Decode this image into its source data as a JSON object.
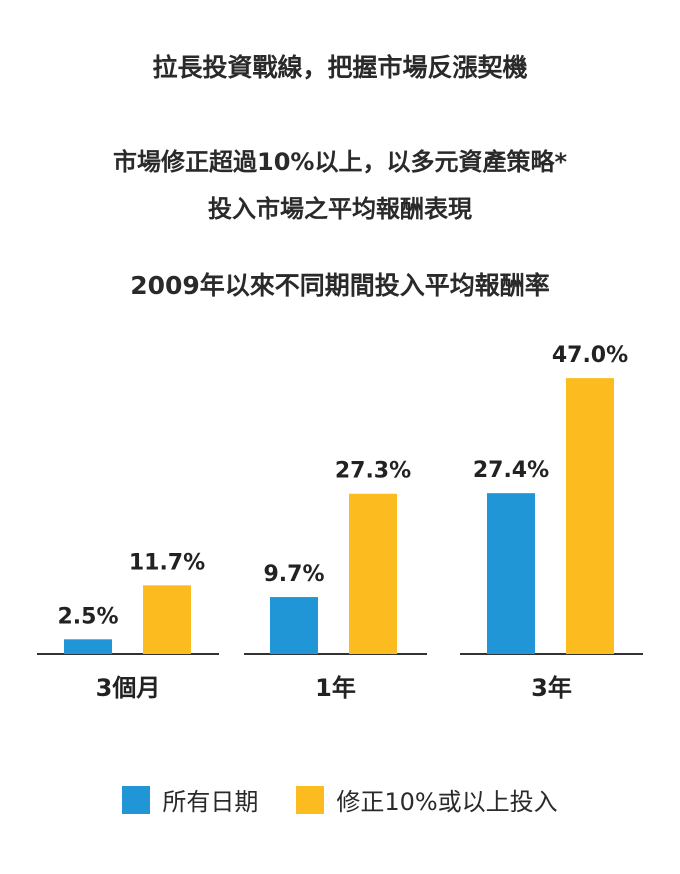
{
  "header": {
    "main_title": "拉長投資戰線，把握市場反漲契機",
    "subtitle_line1": "市場修正超過10%以上，以多元資產策略*",
    "subtitle_line2": "投入市場之平均報酬表現",
    "chart_title": "2009年以來不同期間投入平均報酬率"
  },
  "colors": {
    "series_all": "#2196d6",
    "series_correction": "#fcbc1f",
    "axis": "#333333"
  },
  "legend": {
    "all_label": "所有日期",
    "correction_label": "修正10%或以上投入"
  },
  "chart_data": {
    "type": "bar",
    "title": "2009年以來不同期間投入平均報酬率",
    "categories": [
      "3個月",
      "1年",
      "3年"
    ],
    "series": [
      {
        "name": "所有日期",
        "values": [
          2.5,
          9.7,
          27.4
        ],
        "labels": [
          "2.5%",
          "9.7%",
          "27.4%"
        ]
      },
      {
        "name": "修正10%或以上投入",
        "values": [
          11.7,
          27.3,
          47.0
        ],
        "labels": [
          "11.7%",
          "27.3%",
          "47.0%"
        ]
      }
    ],
    "unit": "%",
    "ylim": [
      0,
      50
    ],
    "grid": false,
    "legend_position": "bottom"
  }
}
